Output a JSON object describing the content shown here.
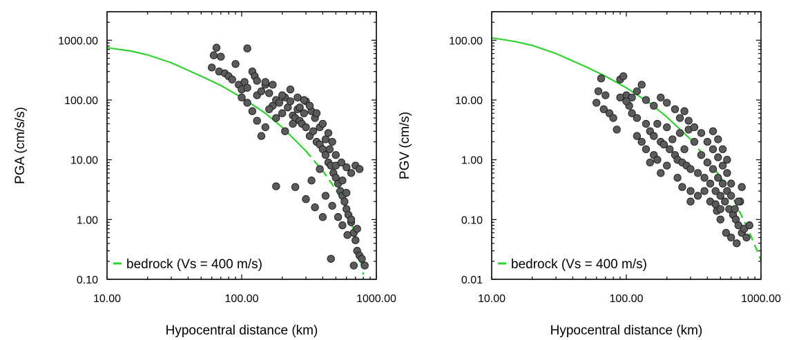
{
  "chart_data": [
    {
      "type": "scatter",
      "xlabel": "Hypocentral distance (km)",
      "ylabel": "PGA (cm/s/s)",
      "xscale": "log",
      "yscale": "log",
      "xlim": [
        10,
        1000
      ],
      "ylim": [
        0.1,
        3000
      ],
      "xticks": [
        "10.00",
        "100.00",
        "1000.00"
      ],
      "yticks": [
        "0.10",
        "1.00",
        "10.00",
        "100.00",
        "1000.00"
      ],
      "legend": {
        "position": "bottom-left",
        "label": "bedrock (Vs = 400 m/s)",
        "color": "#2dd22d"
      },
      "curve": {
        "name": "bedrock (Vs = 400 m/s)",
        "color": "#2dd22d",
        "x": [
          10,
          15,
          20,
          30,
          50,
          70,
          100,
          150,
          200,
          300,
          400,
          500,
          600,
          700,
          800
        ],
        "y": [
          750,
          660,
          570,
          420,
          250,
          175,
          110,
          60,
          35,
          14,
          6.5,
          3.2,
          1.5,
          0.55,
          0.12
        ]
      },
      "points": [
        [
          65,
          750
        ],
        [
          62,
          560
        ],
        [
          70,
          530
        ],
        [
          60,
          350
        ],
        [
          68,
          300
        ],
        [
          75,
          280
        ],
        [
          80,
          250
        ],
        [
          110,
          730
        ],
        [
          85,
          220
        ],
        [
          90,
          400
        ],
        [
          95,
          180
        ],
        [
          100,
          150
        ],
        [
          105,
          200
        ],
        [
          110,
          160
        ],
        [
          120,
          300
        ],
        [
          125,
          250
        ],
        [
          130,
          120
        ],
        [
          140,
          140
        ],
        [
          150,
          180
        ],
        [
          160,
          130
        ],
        [
          170,
          80
        ],
        [
          180,
          100
        ],
        [
          190,
          90
        ],
        [
          200,
          60
        ],
        [
          210,
          110
        ],
        [
          220,
          75
        ],
        [
          230,
          95
        ],
        [
          240,
          55
        ],
        [
          250,
          50
        ],
        [
          260,
          70
        ],
        [
          270,
          45
        ],
        [
          280,
          40
        ],
        [
          290,
          60
        ],
        [
          300,
          35
        ],
        [
          320,
          25
        ],
        [
          340,
          30
        ],
        [
          360,
          20
        ],
        [
          380,
          18
        ],
        [
          400,
          15
        ],
        [
          420,
          12
        ],
        [
          440,
          9
        ],
        [
          460,
          8
        ],
        [
          480,
          6
        ],
        [
          500,
          5
        ],
        [
          520,
          4
        ],
        [
          540,
          3
        ],
        [
          560,
          2.5
        ],
        [
          580,
          2
        ],
        [
          600,
          1.5
        ],
        [
          620,
          1.2
        ],
        [
          650,
          0.9
        ],
        [
          680,
          0.6
        ],
        [
          700,
          0.45
        ],
        [
          720,
          0.3
        ],
        [
          750,
          0.25
        ],
        [
          780,
          0.22
        ],
        [
          820,
          0.17
        ],
        [
          680,
          0.17
        ],
        [
          460,
          0.22
        ],
        [
          720,
          0.7
        ],
        [
          650,
          1.0
        ],
        [
          600,
          2.8
        ],
        [
          560,
          4.5
        ],
        [
          500,
          8
        ],
        [
          450,
          15
        ],
        [
          420,
          22
        ],
        [
          380,
          35
        ],
        [
          350,
          50
        ],
        [
          330,
          65
        ],
        [
          300,
          95
        ],
        [
          270,
          75
        ],
        [
          240,
          40
        ],
        [
          210,
          30
        ],
        [
          180,
          50
        ],
        [
          160,
          70
        ],
        [
          150,
          35
        ],
        [
          140,
          25
        ],
        [
          130,
          45
        ],
        [
          120,
          65
        ],
        [
          110,
          90
        ],
        [
          100,
          110
        ],
        [
          180,
          3.6
        ],
        [
          250,
          3.5
        ],
        [
          300,
          2.2
        ],
        [
          350,
          1.6
        ],
        [
          400,
          1.1
        ],
        [
          330,
          4.5
        ],
        [
          380,
          7
        ],
        [
          420,
          2.5
        ],
        [
          470,
          1.7
        ],
        [
          520,
          1.1
        ],
        [
          560,
          0.8
        ],
        [
          610,
          0.55
        ],
        [
          700,
          8
        ],
        [
          750,
          7
        ],
        [
          650,
          6
        ],
        [
          600,
          7.5
        ],
        [
          550,
          9
        ],
        [
          500,
          12
        ],
        [
          470,
          20
        ],
        [
          440,
          28
        ],
        [
          400,
          40
        ],
        [
          360,
          60
        ],
        [
          320,
          80
        ],
        [
          290,
          100
        ],
        [
          260,
          110
        ],
        [
          230,
          150
        ],
        [
          200,
          120
        ],
        [
          170,
          180
        ],
        [
          150,
          200
        ],
        [
          130,
          210
        ]
      ]
    },
    {
      "type": "scatter",
      "xlabel": "Hypocentral distance (km)",
      "ylabel": "PGV (cm/s)",
      "xscale": "log",
      "yscale": "log",
      "xlim": [
        10,
        1000
      ],
      "ylim": [
        0.01,
        300
      ],
      "xticks": [
        "10.00",
        "100.00",
        "1000.00"
      ],
      "yticks": [
        "0.01",
        "0.10",
        "1.00",
        "10.00",
        "100.00"
      ],
      "legend": {
        "position": "bottom-left",
        "label": "bedrock (Vs = 400 m/s)",
        "color": "#2dd22d"
      },
      "curve": {
        "name": "bedrock (Vs = 400 m/s)",
        "color": "#2dd22d",
        "x": [
          10,
          15,
          20,
          30,
          50,
          70,
          100,
          150,
          200,
          300,
          400,
          500,
          600,
          700,
          800,
          1000
        ],
        "y": [
          110,
          95,
          82,
          60,
          36,
          25,
          16,
          8.8,
          5.2,
          2.2,
          1.0,
          0.52,
          0.27,
          0.13,
          0.07,
          0.021
        ]
      },
      "points": [
        [
          65,
          23
        ],
        [
          62,
          14
        ],
        [
          70,
          12
        ],
        [
          60,
          9
        ],
        [
          68,
          7
        ],
        [
          75,
          6
        ],
        [
          80,
          5
        ],
        [
          85,
          3.2
        ],
        [
          90,
          22
        ],
        [
          95,
          25
        ],
        [
          100,
          12
        ],
        [
          105,
          8
        ],
        [
          110,
          6
        ],
        [
          120,
          5
        ],
        [
          130,
          18
        ],
        [
          140,
          4
        ],
        [
          150,
          3
        ],
        [
          160,
          2.5
        ],
        [
          170,
          4
        ],
        [
          180,
          2
        ],
        [
          190,
          1.8
        ],
        [
          200,
          3.5
        ],
        [
          210,
          1.5
        ],
        [
          220,
          2.2
        ],
        [
          230,
          1.2
        ],
        [
          240,
          1.0
        ],
        [
          250,
          2.8
        ],
        [
          260,
          0.9
        ],
        [
          270,
          1.5
        ],
        [
          280,
          0.8
        ],
        [
          290,
          3.2
        ],
        [
          300,
          0.7
        ],
        [
          320,
          2.0
        ],
        [
          340,
          0.6
        ],
        [
          360,
          1.2
        ],
        [
          380,
          0.5
        ],
        [
          400,
          0.9
        ],
        [
          420,
          0.4
        ],
        [
          440,
          0.7
        ],
        [
          460,
          0.3
        ],
        [
          480,
          0.5
        ],
        [
          500,
          0.25
        ],
        [
          520,
          0.4
        ],
        [
          540,
          0.2
        ],
        [
          560,
          0.3
        ],
        [
          580,
          0.15
        ],
        [
          600,
          0.25
        ],
        [
          620,
          0.12
        ],
        [
          650,
          0.1
        ],
        [
          680,
          0.08
        ],
        [
          700,
          0.2
        ],
        [
          720,
          0.06
        ],
        [
          750,
          0.07
        ],
        [
          780,
          0.05
        ],
        [
          820,
          0.08
        ],
        [
          660,
          0.04
        ],
        [
          600,
          0.05
        ],
        [
          550,
          0.06
        ],
        [
          500,
          0.1
        ],
        [
          470,
          0.14
        ],
        [
          720,
          0.35
        ],
        [
          680,
          0.2
        ],
        [
          640,
          0.15
        ],
        [
          600,
          0.4
        ],
        [
          560,
          0.6
        ],
        [
          520,
          0.8
        ],
        [
          480,
          1.1
        ],
        [
          440,
          1.5
        ],
        [
          400,
          2
        ],
        [
          360,
          2.8
        ],
        [
          320,
          3.5
        ],
        [
          290,
          4.5
        ],
        [
          270,
          6.5
        ],
        [
          250,
          5
        ],
        [
          230,
          7
        ],
        [
          200,
          9
        ],
        [
          180,
          11
        ],
        [
          160,
          8
        ],
        [
          140,
          10
        ],
        [
          120,
          14
        ],
        [
          110,
          11
        ],
        [
          100,
          9.5
        ],
        [
          90,
          11
        ],
        [
          260,
          0.35
        ],
        [
          300,
          0.3
        ],
        [
          340,
          0.25
        ],
        [
          380,
          0.3
        ],
        [
          420,
          0.2
        ],
        [
          460,
          0.18
        ],
        [
          500,
          0.15
        ],
        [
          300,
          0.2
        ],
        [
          240,
          0.5
        ],
        [
          200,
          0.8
        ],
        [
          180,
          0.6
        ],
        [
          160,
          1.2
        ],
        [
          140,
          1.5
        ],
        [
          130,
          2
        ],
        [
          120,
          2.5
        ],
        [
          150,
          0.9
        ],
        [
          170,
          1.0
        ],
        [
          560,
          1.0
        ],
        [
          520,
          1.5
        ],
        [
          480,
          2.2
        ],
        [
          440,
          3.0
        ]
      ]
    }
  ]
}
